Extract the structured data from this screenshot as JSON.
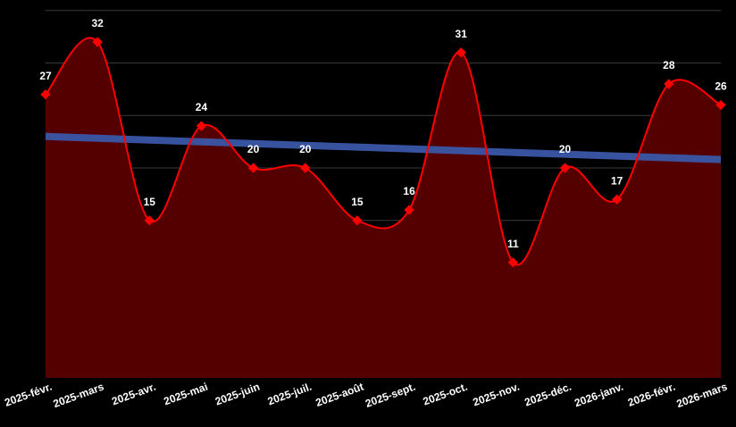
{
  "chart_data": {
    "type": "area",
    "categories": [
      "2025-févr.",
      "2025-mars",
      "2025-avr.",
      "2025-mai",
      "2025-juin",
      "2025-juil.",
      "2025-août",
      "2025-sept.",
      "2025-oct.",
      "2025-nov.",
      "2025-déc.",
      "2026-janv.",
      "2026-févr.",
      "2026-mars"
    ],
    "series": [
      {
        "values": [
          27,
          32,
          15,
          24,
          20,
          20,
          15,
          16,
          31,
          11,
          20,
          17,
          28,
          26
        ],
        "color": "#ff0000",
        "fill": "#550000"
      }
    ],
    "trendline": {
      "start": 23,
      "end": 20.8,
      "color": "#3a56a8"
    },
    "ylim": [
      0,
      36
    ],
    "y_grid_step": 5,
    "grid": true,
    "legend": "none",
    "data_labels": true,
    "xlabel": "",
    "ylabel": ""
  }
}
